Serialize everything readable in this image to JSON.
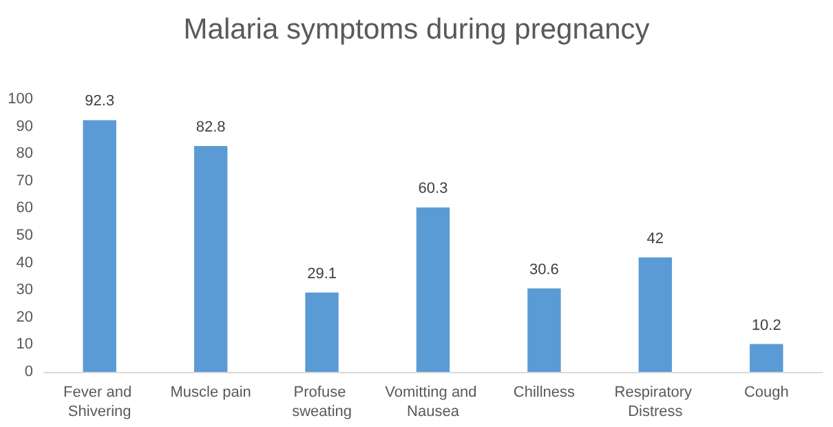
{
  "chart_data": {
    "type": "bar",
    "title": "Malaria symptoms during pregnancy",
    "categories": [
      "Fever and Shivering",
      "Muscle pain",
      "Profuse sweating",
      "Vomitting and Nausea",
      "Chillness",
      "Respiratory Distress",
      "Cough"
    ],
    "values": [
      92.3,
      82.8,
      29.1,
      60.3,
      30.6,
      42,
      10.2
    ],
    "color": "#5b9bd5",
    "ylim": [
      0,
      100
    ],
    "yticks": [
      0,
      10,
      20,
      30,
      40,
      50,
      60,
      70,
      80,
      90,
      100
    ],
    "grid": false,
    "data_labels": true
  }
}
